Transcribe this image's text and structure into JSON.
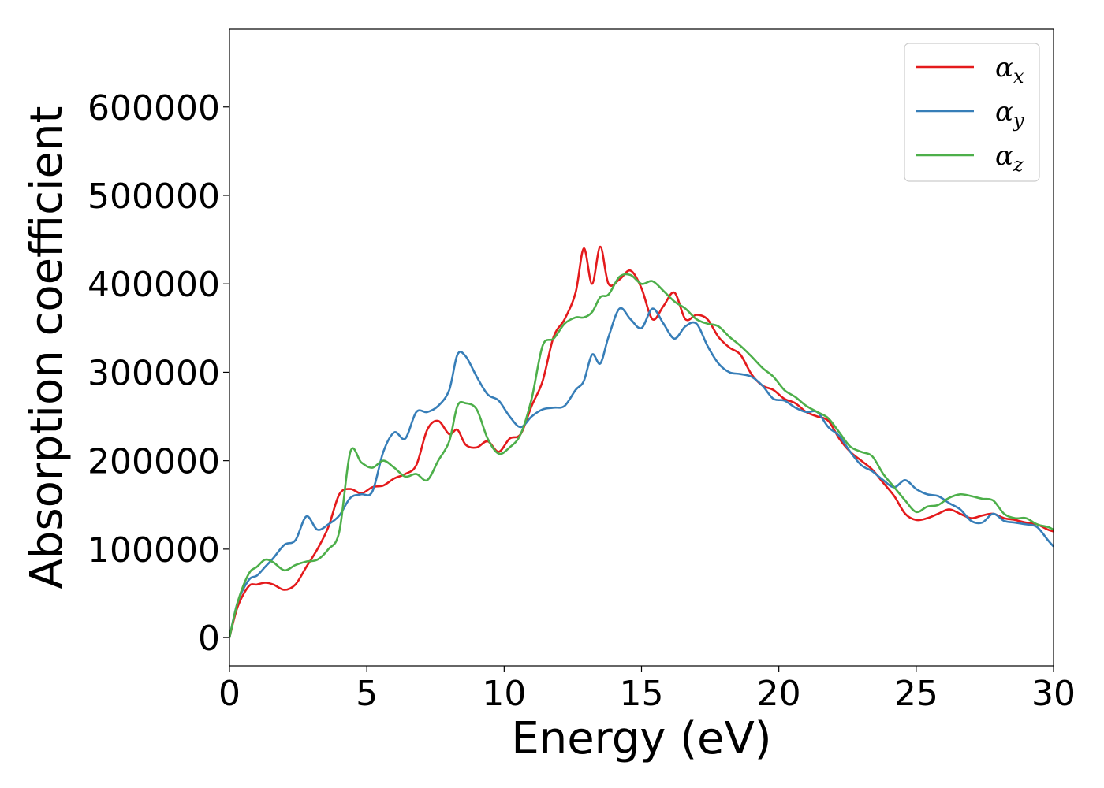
{
  "chart_data": {
    "type": "line",
    "xlabel": "Energy (eV)",
    "ylabel": "Absorption coefficient",
    "xlim": [
      0,
      30
    ],
    "ylim": [
      -32000,
      688000
    ],
    "xticks": [
      0,
      5,
      10,
      15,
      20,
      25,
      30
    ],
    "xtick_labels": [
      "0",
      "5",
      "10",
      "15",
      "20",
      "25",
      "30"
    ],
    "yticks": [
      0,
      100000,
      200000,
      300000,
      400000,
      500000,
      600000
    ],
    "ytick_labels": [
      "0",
      "100000",
      "200000",
      "300000",
      "400000",
      "500000",
      "600000"
    ],
    "grid": false,
    "legend_position": "top-right",
    "series": [
      {
        "name": "α_x",
        "symbol": "α",
        "subscript": "x",
        "color": "#e41a1c",
        "x": [
          0,
          0.3,
          0.7,
          1.0,
          1.3,
          1.6,
          2.0,
          2.4,
          2.8,
          3.2,
          3.6,
          4.0,
          4.4,
          4.8,
          5.2,
          5.6,
          6.0,
          6.4,
          6.8,
          7.2,
          7.6,
          8.0,
          8.3,
          8.6,
          9.0,
          9.4,
          9.8,
          10.2,
          10.6,
          11.0,
          11.4,
          11.8,
          12.2,
          12.6,
          12.9,
          13.2,
          13.5,
          13.8,
          14.2,
          14.6,
          15.0,
          15.4,
          15.8,
          16.2,
          16.6,
          17.0,
          17.4,
          17.8,
          18.2,
          18.6,
          19.0,
          19.4,
          19.8,
          20.2,
          20.6,
          21.0,
          21.4,
          21.8,
          22.2,
          22.6,
          23.0,
          23.4,
          23.8,
          24.2,
          24.6,
          25.0,
          25.4,
          25.8,
          26.2,
          26.6,
          27.0,
          27.4,
          27.8,
          28.2,
          28.6,
          29.0,
          29.4,
          29.8,
          30.0
        ],
        "y": [
          0,
          35000,
          58000,
          60000,
          62000,
          60000,
          54000,
          60000,
          80000,
          100000,
          125000,
          162000,
          168000,
          163000,
          170000,
          172000,
          180000,
          185000,
          195000,
          235000,
          245000,
          230000,
          235000,
          218000,
          215000,
          222000,
          210000,
          225000,
          230000,
          262000,
          290000,
          340000,
          360000,
          390000,
          440000,
          400000,
          442000,
          400000,
          405000,
          415000,
          395000,
          360000,
          375000,
          390000,
          360000,
          365000,
          360000,
          340000,
          328000,
          320000,
          298000,
          285000,
          280000,
          270000,
          265000,
          255000,
          250000,
          245000,
          225000,
          210000,
          200000,
          190000,
          175000,
          160000,
          140000,
          133000,
          135000,
          140000,
          145000,
          140000,
          135000,
          138000,
          140000,
          135000,
          133000,
          130000,
          128000,
          122000,
          120000
        ]
      },
      {
        "name": "α_y",
        "symbol": "α",
        "subscript": "y",
        "color": "#377eb8",
        "x": [
          0,
          0.3,
          0.7,
          1.0,
          1.3,
          1.6,
          2.0,
          2.4,
          2.8,
          3.2,
          3.6,
          4.0,
          4.4,
          4.8,
          5.2,
          5.6,
          6.0,
          6.4,
          6.8,
          7.2,
          7.6,
          8.0,
          8.3,
          8.6,
          9.0,
          9.4,
          9.8,
          10.2,
          10.6,
          11.0,
          11.4,
          11.8,
          12.2,
          12.6,
          12.9,
          13.2,
          13.5,
          13.8,
          14.2,
          14.6,
          15.0,
          15.4,
          15.8,
          16.2,
          16.6,
          17.0,
          17.4,
          17.8,
          18.2,
          18.6,
          19.0,
          19.4,
          19.8,
          20.2,
          20.6,
          21.0,
          21.4,
          21.8,
          22.2,
          22.6,
          23.0,
          23.4,
          23.8,
          24.2,
          24.6,
          25.0,
          25.4,
          25.8,
          26.2,
          26.6,
          27.0,
          27.4,
          27.8,
          28.2,
          28.6,
          29.0,
          29.4,
          29.8,
          30.0
        ],
        "y": [
          0,
          40000,
          65000,
          70000,
          80000,
          90000,
          105000,
          110000,
          137000,
          122000,
          128000,
          138000,
          158000,
          162000,
          165000,
          210000,
          232000,
          225000,
          255000,
          255000,
          262000,
          280000,
          320000,
          318000,
          295000,
          275000,
          268000,
          250000,
          238000,
          250000,
          258000,
          260000,
          262000,
          280000,
          290000,
          320000,
          310000,
          340000,
          372000,
          360000,
          350000,
          372000,
          355000,
          338000,
          352000,
          355000,
          330000,
          310000,
          300000,
          298000,
          295000,
          285000,
          270000,
          268000,
          260000,
          255000,
          255000,
          238000,
          228000,
          210000,
          195000,
          188000,
          178000,
          170000,
          178000,
          168000,
          162000,
          160000,
          152000,
          145000,
          132000,
          130000,
          140000,
          132000,
          130000,
          128000,
          125000,
          110000,
          103000
        ]
      },
      {
        "name": "α_z",
        "symbol": "α",
        "subscript": "z",
        "color": "#4daf4a",
        "x": [
          0,
          0.3,
          0.7,
          1.0,
          1.3,
          1.6,
          2.0,
          2.4,
          2.8,
          3.2,
          3.6,
          4.0,
          4.4,
          4.8,
          5.2,
          5.6,
          6.0,
          6.4,
          6.8,
          7.2,
          7.6,
          8.0,
          8.3,
          8.6,
          9.0,
          9.4,
          9.8,
          10.2,
          10.6,
          11.0,
          11.4,
          11.8,
          12.2,
          12.6,
          12.9,
          13.2,
          13.5,
          13.8,
          14.2,
          14.6,
          15.0,
          15.4,
          15.8,
          16.2,
          16.6,
          17.0,
          17.4,
          17.8,
          18.2,
          18.6,
          19.0,
          19.4,
          19.8,
          20.2,
          20.6,
          21.0,
          21.4,
          21.8,
          22.2,
          22.6,
          23.0,
          23.4,
          23.8,
          24.2,
          24.6,
          25.0,
          25.4,
          25.8,
          26.2,
          26.6,
          27.0,
          27.4,
          27.8,
          28.2,
          28.6,
          29.0,
          29.4,
          29.8,
          30.0
        ],
        "y": [
          0,
          40000,
          72000,
          80000,
          88000,
          85000,
          76000,
          82000,
          86000,
          88000,
          100000,
          120000,
          210000,
          198000,
          192000,
          200000,
          192000,
          182000,
          185000,
          178000,
          200000,
          222000,
          262000,
          265000,
          258000,
          225000,
          208000,
          215000,
          230000,
          270000,
          330000,
          338000,
          355000,
          362000,
          362000,
          368000,
          385000,
          388000,
          408000,
          410000,
          400000,
          403000,
          392000,
          380000,
          372000,
          360000,
          355000,
          352000,
          340000,
          330000,
          318000,
          305000,
          295000,
          280000,
          272000,
          262000,
          255000,
          248000,
          232000,
          216000,
          210000,
          205000,
          185000,
          170000,
          155000,
          142000,
          148000,
          150000,
          158000,
          162000,
          160000,
          157000,
          155000,
          140000,
          135000,
          135000,
          128000,
          125000,
          122000
        ]
      }
    ]
  }
}
